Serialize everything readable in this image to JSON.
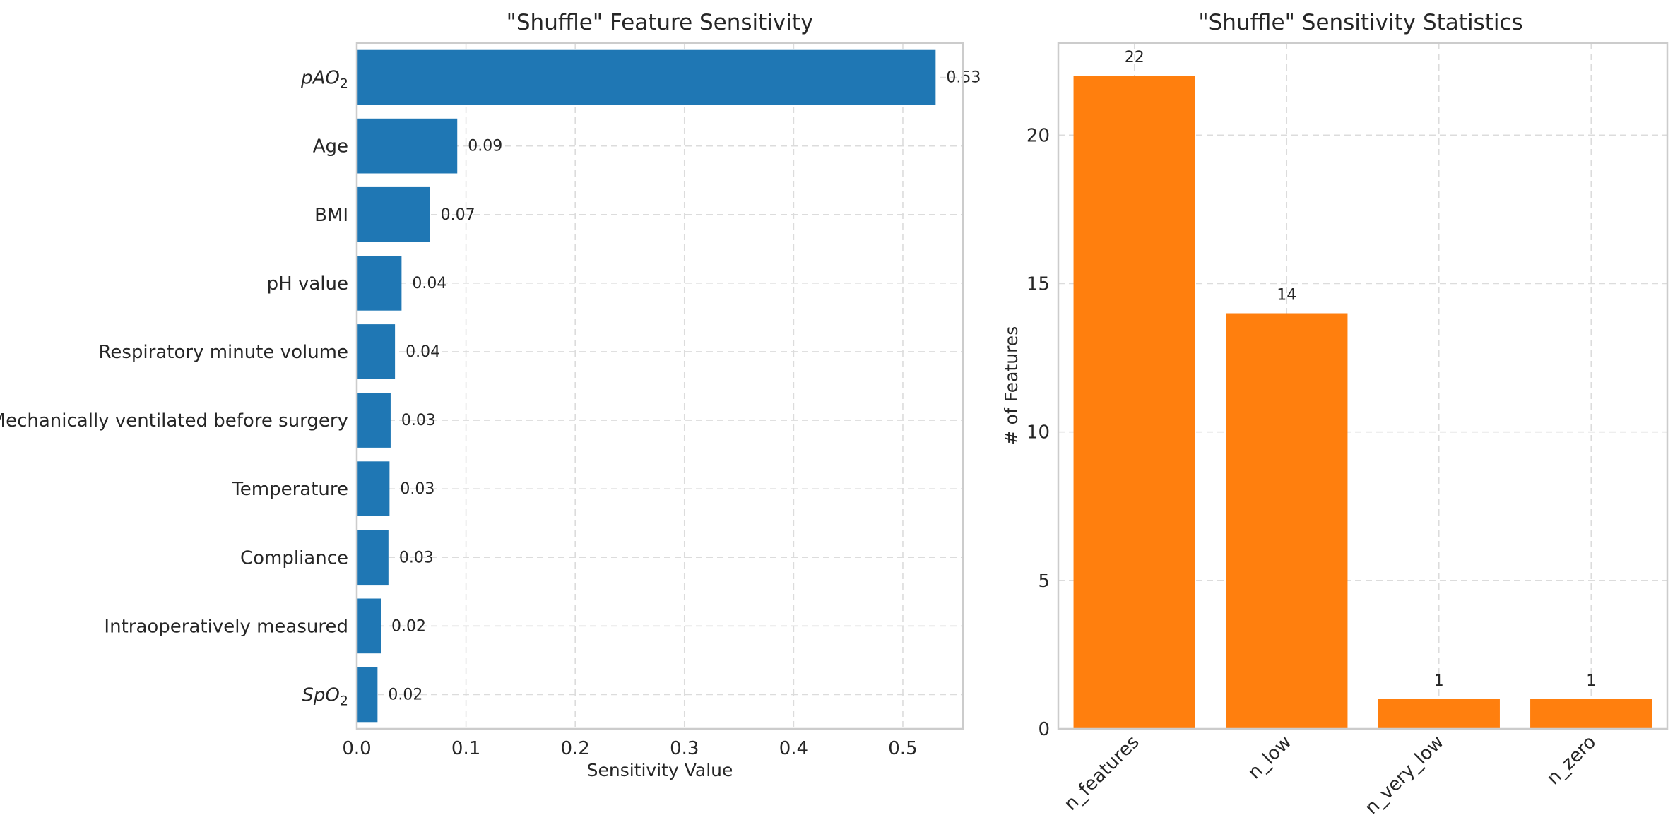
{
  "chart_data": [
    {
      "type": "bar",
      "orientation": "horizontal",
      "title": "\"Shuffle\" Feature Sensitivity",
      "xlabel": "Sensitivity Value",
      "ylabel": "",
      "xlim": [
        0,
        0.555
      ],
      "xticks": [
        "0.0",
        "0.1",
        "0.2",
        "0.3",
        "0.4",
        "0.5"
      ],
      "categories": [
        {
          "base": "pAO",
          "sub": "2",
          "italic": true
        },
        {
          "base": "Age",
          "sub": "",
          "italic": false
        },
        {
          "base": "BMI",
          "sub": "",
          "italic": false
        },
        {
          "base": "pH value",
          "sub": "",
          "italic": false
        },
        {
          "base": "Respiratory minute volume",
          "sub": "",
          "italic": false
        },
        {
          "base": "Mechanically ventilated before surgery",
          "sub": "",
          "italic": false
        },
        {
          "base": "Temperature",
          "sub": "",
          "italic": false
        },
        {
          "base": "Compliance",
          "sub": "",
          "italic": false
        },
        {
          "base": "Intraoperatively measured",
          "sub": "",
          "italic": false
        },
        {
          "base": "SpO",
          "sub": "2",
          "italic": true
        }
      ],
      "values": [
        0.53,
        0.092,
        0.067,
        0.041,
        0.035,
        0.031,
        0.03,
        0.029,
        0.022,
        0.019
      ],
      "value_labels": [
        "0.53",
        "0.09",
        "0.07",
        "0.04",
        "0.04",
        "0.03",
        "0.03",
        "0.03",
        "0.02",
        "0.02"
      ],
      "color": "#1f77b4",
      "grid": true
    },
    {
      "type": "bar",
      "title": "\"Shuffle\" Sensitivity Statistics",
      "xlabel": "",
      "ylabel": "# of Features",
      "ylim": [
        0,
        23.1
      ],
      "yticks": [
        "0",
        "5",
        "10",
        "15",
        "20"
      ],
      "categories": [
        "n_features",
        "n_low",
        "n_very_low",
        "n_zero"
      ],
      "values": [
        22,
        14,
        1,
        1
      ],
      "value_labels": [
        "22",
        "14",
        "1",
        "1"
      ],
      "color": "#ff7f0e",
      "grid": true
    }
  ]
}
